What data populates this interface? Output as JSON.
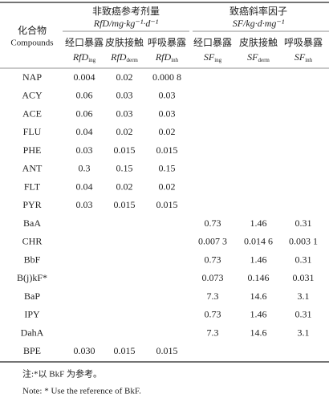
{
  "table": {
    "group_headers": [
      {
        "title": "非致癌参考剂量",
        "unit": "RfD/mg·kg⁻¹·d⁻¹"
      },
      {
        "title": "致癌斜率因子",
        "unit": "SF/kg·d·mg⁻¹"
      }
    ],
    "compound_header": {
      "zh": "化合物",
      "en": "Compounds"
    },
    "route_headers": [
      "经口暴露",
      "皮肤接触",
      "呼吸暴露",
      "经口暴露",
      "皮肤接触",
      "呼吸暴露"
    ],
    "symbol_headers": [
      {
        "main": "RfD",
        "sub": "ing"
      },
      {
        "main": "RfD",
        "sub": "derm"
      },
      {
        "main": "RfD",
        "sub": "inh"
      },
      {
        "main": "SF",
        "sub": "ing"
      },
      {
        "main": "SF",
        "sub": "derm"
      },
      {
        "main": "SF",
        "sub": "inh"
      }
    ],
    "rows": [
      [
        "NAP",
        "0.004",
        "0.02",
        "0.000 8",
        null,
        null,
        null
      ],
      [
        "ACY",
        "0.06",
        "0.03",
        "0.03",
        null,
        null,
        null
      ],
      [
        "ACE",
        "0.06",
        "0.03",
        "0.03",
        null,
        null,
        null
      ],
      [
        "FLU",
        "0.04",
        "0.02",
        "0.02",
        null,
        null,
        null
      ],
      [
        "PHE",
        "0.03",
        "0.015",
        "0.015",
        null,
        null,
        null
      ],
      [
        "ANT",
        "0.3",
        "0.15",
        "0.15",
        null,
        null,
        null
      ],
      [
        "FLT",
        "0.04",
        "0.02",
        "0.02",
        null,
        null,
        null
      ],
      [
        "PYR",
        "0.03",
        "0.015",
        "0.015",
        null,
        null,
        null
      ],
      [
        "BaA",
        null,
        null,
        null,
        "0.73",
        "1.46",
        "0.31"
      ],
      [
        "CHR",
        null,
        null,
        null,
        "0.007 3",
        "0.014 6",
        "0.003 1"
      ],
      [
        "BbF",
        null,
        null,
        null,
        "0.73",
        "1.46",
        "0.31"
      ],
      [
        "B(j)kF*",
        null,
        null,
        null,
        "0.073",
        "0.146",
        "0.031"
      ],
      [
        "BaP",
        null,
        null,
        null,
        "7.3",
        "14.6",
        "3.1"
      ],
      [
        "IPY",
        null,
        null,
        null,
        "0.73",
        "1.46",
        "0.31"
      ],
      [
        "DahA",
        null,
        null,
        null,
        "7.3",
        "14.6",
        "3.1"
      ],
      [
        "BPE",
        "0.030",
        "0.015",
        "0.015",
        null,
        null,
        null
      ]
    ]
  },
  "notes": [
    "注:*以 BkF 为参考。",
    "Note: * Use the reference of BkF."
  ]
}
